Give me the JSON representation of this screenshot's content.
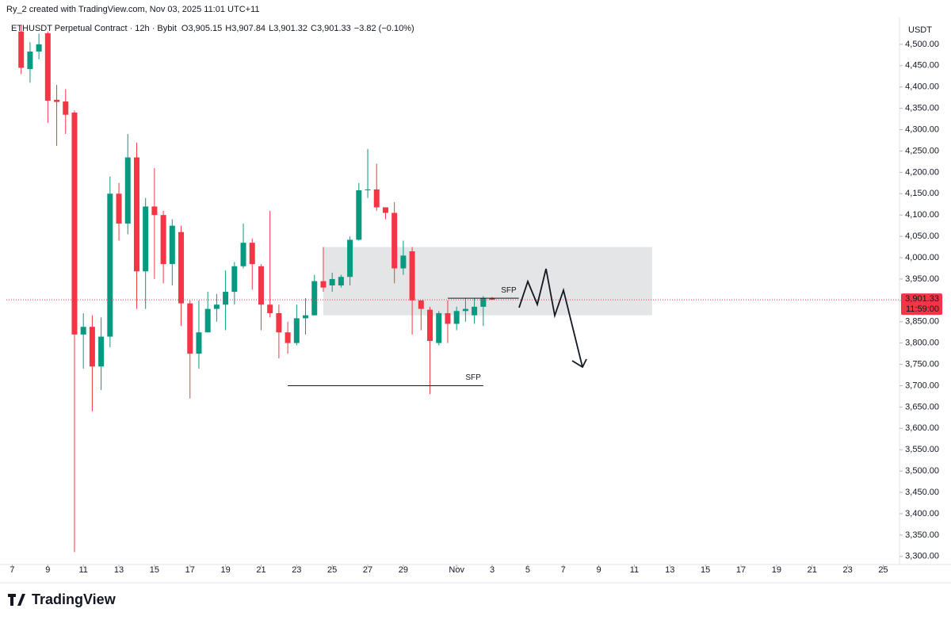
{
  "header": {
    "credit": "Ry_2 created with TradingView.com, Nov 03, 2025 11:01 UTC+11",
    "symbol": "ETHUSDT Perpetual Contract · 12h · Bybit",
    "ohlc": [
      {
        "label": "O",
        "value": "3,905.15"
      },
      {
        "label": "H",
        "value": "3,907.84"
      },
      {
        "label": "L",
        "value": "3,901.32"
      },
      {
        "label": "C",
        "value": "3,901.33"
      }
    ],
    "change": "−3.82 (−0.10%)"
  },
  "footer": {
    "brand": "TradingView"
  },
  "chart_data": {
    "type": "candlestick",
    "up_color": "#089981",
    "down_color": "#f23645",
    "grid": false,
    "y_unit": "USDT",
    "x": [
      "2025-10-07T12:00",
      "2025-10-08T00:00",
      "2025-10-08T12:00",
      "2025-10-09T00:00",
      "2025-10-09T12:00",
      "2025-10-10T00:00",
      "2025-10-10T12:00",
      "2025-10-11T00:00",
      "2025-10-11T12:00",
      "2025-10-12T00:00",
      "2025-10-12T12:00",
      "2025-10-13T00:00",
      "2025-10-13T12:00",
      "2025-10-14T00:00",
      "2025-10-14T12:00",
      "2025-10-15T00:00",
      "2025-10-15T12:00",
      "2025-10-16T00:00",
      "2025-10-16T12:00",
      "2025-10-17T00:00",
      "2025-10-17T12:00",
      "2025-10-18T00:00",
      "2025-10-18T12:00",
      "2025-10-19T00:00",
      "2025-10-19T12:00",
      "2025-10-20T00:00",
      "2025-10-20T12:00",
      "2025-10-21T00:00",
      "2025-10-21T12:00",
      "2025-10-22T00:00",
      "2025-10-22T12:00",
      "2025-10-23T00:00",
      "2025-10-23T12:00",
      "2025-10-24T00:00",
      "2025-10-24T12:00",
      "2025-10-25T00:00",
      "2025-10-25T12:00",
      "2025-10-26T00:00",
      "2025-10-26T12:00",
      "2025-10-27T00:00",
      "2025-10-27T12:00",
      "2025-10-28T00:00",
      "2025-10-28T12:00",
      "2025-10-29T00:00",
      "2025-10-29T12:00",
      "2025-10-30T00:00",
      "2025-10-30T12:00",
      "2025-10-31T00:00",
      "2025-10-31T12:00",
      "2025-11-01T00:00",
      "2025-11-01T12:00",
      "2025-11-02T00:00",
      "2025-11-02T12:00",
      "2025-11-03T00:00"
    ],
    "open": [
      4530,
      4442,
      4483,
      4526,
      4370,
      4366,
      4340,
      3820,
      3838,
      3745,
      3815,
      4150,
      4080,
      4235,
      3968,
      4120,
      4100,
      3985,
      4060,
      3893,
      3775,
      3825,
      3880,
      3890,
      3920,
      3980,
      4035,
      3980,
      3890,
      3870,
      3825,
      3800,
      3858,
      3865,
      3945,
      3935,
      3935,
      3955,
      4042,
      4158,
      4160,
      4118,
      4105,
      3975,
      4015,
      3900,
      3878,
      3800,
      3870,
      3845,
      3875,
      3865,
      3885,
      3905.15
    ],
    "high": [
      4545,
      4505,
      4525,
      4530,
      4405,
      4395,
      4345,
      3870,
      3865,
      3860,
      4190,
      4175,
      4290,
      4270,
      4140,
      4210,
      4110,
      4090,
      4075,
      3900,
      3900,
      3920,
      3915,
      3970,
      3990,
      4080,
      4045,
      3985,
      4110,
      3890,
      3850,
      3890,
      3905,
      3960,
      4025,
      3965,
      3960,
      4050,
      4175,
      4255,
      4220,
      4115,
      4130,
      4040,
      4025,
      3890,
      3885,
      3875,
      3900,
      3885,
      3905,
      3905,
      3910,
      3907.84
    ],
    "low": [
      4430,
      4410,
      4465,
      4316,
      4262,
      4290,
      3310,
      3740,
      3640,
      3690,
      3790,
      4040,
      4055,
      3880,
      3880,
      3950,
      3940,
      3935,
      3840,
      3670,
      3740,
      3825,
      3850,
      3830,
      3890,
      3975,
      3925,
      3830,
      3860,
      3764,
      3775,
      3795,
      3820,
      3865,
      3920,
      3920,
      3930,
      3935,
      4040,
      4140,
      4110,
      4090,
      3940,
      3960,
      3820,
      3830,
      3680,
      3795,
      3800,
      3830,
      3850,
      3845,
      3840,
      3901.32
    ],
    "close": [
      4445,
      4483,
      4500,
      4368,
      4365,
      4335,
      3820,
      3838,
      3745,
      3815,
      4150,
      4080,
      4235,
      3968,
      4120,
      4100,
      3985,
      4075,
      3893,
      3775,
      3825,
      3880,
      3890,
      3920,
      3980,
      4035,
      3985,
      3890,
      3870,
      3825,
      3800,
      3858,
      3865,
      3945,
      3930,
      3950,
      3955,
      4042,
      4158,
      4160,
      4118,
      4105,
      3975,
      4005,
      3900,
      3880,
      3805,
      3870,
      3845,
      3875,
      3880,
      3885,
      3905,
      3901.33
    ],
    "last_price": {
      "value": 3901.33,
      "label": "3,901.33",
      "countdown": "11:59:00"
    },
    "zone": {
      "x0": "2025-10-24T12:00",
      "x1": "2025-11-12T00:00",
      "low": 3865,
      "high": 4025
    },
    "levels": [
      {
        "label": "SFP",
        "value": 3700,
        "x0": "2025-10-22T12:00",
        "x1": "2025-11-02T12:00"
      },
      {
        "label": "SFP",
        "value": 3905,
        "x0": "2025-10-31T12:00",
        "x1": "2025-11-04T12:00"
      }
    ],
    "xlim": [
      "2025-10-06T16:00",
      "2025-11-25T22:00"
    ],
    "xticks": [
      {
        "value": "2025-10-07T00:00",
        "label": "7"
      },
      {
        "value": "2025-10-09T00:00",
        "label": "9"
      },
      {
        "value": "2025-10-11T00:00",
        "label": "11"
      },
      {
        "value": "2025-10-13T00:00",
        "label": "13"
      },
      {
        "value": "2025-10-15T00:00",
        "label": "15"
      },
      {
        "value": "2025-10-17T00:00",
        "label": "17"
      },
      {
        "value": "2025-10-19T00:00",
        "label": "19"
      },
      {
        "value": "2025-10-21T00:00",
        "label": "21"
      },
      {
        "value": "2025-10-23T00:00",
        "label": "23"
      },
      {
        "value": "2025-10-25T00:00",
        "label": "25"
      },
      {
        "value": "2025-10-27T00:00",
        "label": "27"
      },
      {
        "value": "2025-10-29T00:00",
        "label": "29"
      },
      {
        "value": "2025-11-01T00:00",
        "label": "Nov"
      },
      {
        "value": "2025-11-03T00:00",
        "label": "3"
      },
      {
        "value": "2025-11-05T00:00",
        "label": "5"
      },
      {
        "value": "2025-11-07T00:00",
        "label": "7"
      },
      {
        "value": "2025-11-09T00:00",
        "label": "9"
      },
      {
        "value": "2025-11-11T00:00",
        "label": "11"
      },
      {
        "value": "2025-11-13T00:00",
        "label": "13"
      },
      {
        "value": "2025-11-15T00:00",
        "label": "15"
      },
      {
        "value": "2025-11-17T00:00",
        "label": "17"
      },
      {
        "value": "2025-11-19T00:00",
        "label": "19"
      },
      {
        "value": "2025-11-21T00:00",
        "label": "21"
      },
      {
        "value": "2025-11-23T00:00",
        "label": "23"
      },
      {
        "value": "2025-11-25T00:00",
        "label": "25"
      }
    ],
    "ylim": [
      3281,
      4563
    ],
    "yticks": [
      {
        "value": 3300,
        "label": "3,300.00"
      },
      {
        "value": 3350,
        "label": "3,350.00"
      },
      {
        "value": 3400,
        "label": "3,400.00"
      },
      {
        "value": 3450,
        "label": "3,450.00"
      },
      {
        "value": 3500,
        "label": "3,500.00"
      },
      {
        "value": 3550,
        "label": "3,550.00"
      },
      {
        "value": 3600,
        "label": "3,600.00"
      },
      {
        "value": 3650,
        "label": "3,650.00"
      },
      {
        "value": 3700,
        "label": "3,700.00"
      },
      {
        "value": 3750,
        "label": "3,750.00"
      },
      {
        "value": 3800,
        "label": "3,800.00"
      },
      {
        "value": 3850,
        "label": "3,850.00"
      },
      {
        "value": 3900,
        "label": "3,900.00"
      },
      {
        "value": 3950,
        "label": "3,950.00"
      },
      {
        "value": 4000,
        "label": "4,000.00"
      },
      {
        "value": 4050,
        "label": "4,050.00"
      },
      {
        "value": 4100,
        "label": "4,100.00"
      },
      {
        "value": 4150,
        "label": "4,150.00"
      },
      {
        "value": 4200,
        "label": "4,200.00"
      },
      {
        "value": 4250,
        "label": "4,250.00"
      },
      {
        "value": 4300,
        "label": "4,300.00"
      },
      {
        "value": 4350,
        "label": "4,350.00"
      },
      {
        "value": 4400,
        "label": "4,400.00"
      },
      {
        "value": 4450,
        "label": "4,450.00"
      },
      {
        "value": 4500,
        "label": "4,500.00"
      }
    ]
  }
}
